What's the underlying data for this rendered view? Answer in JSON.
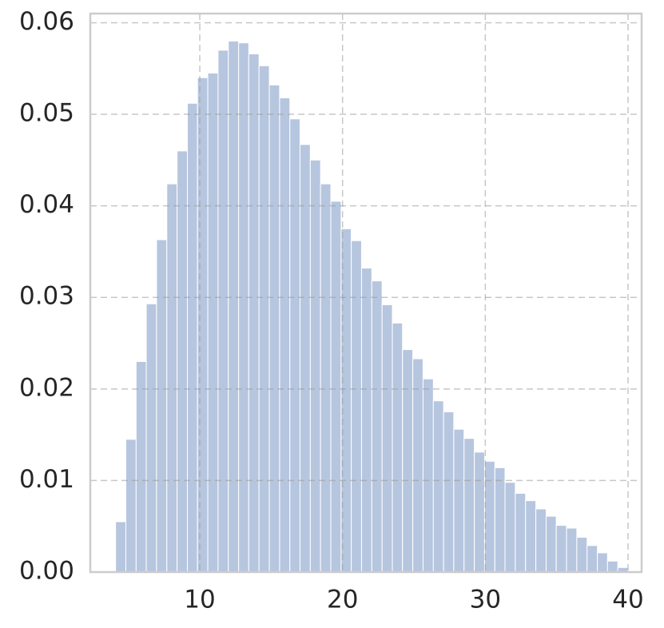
{
  "chart_data": {
    "type": "histogram",
    "bins": [
      4.1,
      4.82,
      5.54,
      6.25,
      6.97,
      7.69,
      8.41,
      9.13,
      9.84,
      10.56,
      11.28,
      12.0,
      12.72,
      13.43,
      14.15,
      14.87,
      15.59,
      16.31,
      17.02,
      17.74,
      18.46,
      19.18,
      19.9,
      20.61,
      21.33,
      22.05,
      22.77,
      23.49,
      24.2,
      24.92,
      25.64,
      26.36,
      27.08,
      27.79,
      28.51,
      29.23,
      29.95,
      30.67,
      31.38,
      32.1,
      32.82,
      33.54,
      34.26,
      34.97,
      35.69,
      36.41,
      37.13,
      37.85,
      38.56,
      39.28,
      40.0
    ],
    "values": [
      0.0055,
      0.0145,
      0.023,
      0.0293,
      0.0363,
      0.0424,
      0.046,
      0.0512,
      0.054,
      0.0545,
      0.057,
      0.058,
      0.0578,
      0.0566,
      0.0553,
      0.0532,
      0.0518,
      0.0495,
      0.0467,
      0.045,
      0.0424,
      0.0405,
      0.0375,
      0.0362,
      0.0332,
      0.0318,
      0.0292,
      0.0272,
      0.0243,
      0.0233,
      0.0211,
      0.0187,
      0.0175,
      0.0156,
      0.0146,
      0.0131,
      0.0121,
      0.0114,
      0.0098,
      0.0086,
      0.0078,
      0.0069,
      0.0061,
      0.0051,
      0.0048,
      0.0038,
      0.0029,
      0.0021,
      0.0012,
      0.0005
    ],
    "color": "#b7c6df",
    "xlim": [
      2.33,
      40.95
    ],
    "ylim": [
      0,
      0.061
    ],
    "xticks": [
      10,
      20,
      30,
      40
    ],
    "yticks": [
      {
        "value": 0,
        "label": "0.00"
      },
      {
        "value": 0.01,
        "label": "0.01"
      },
      {
        "value": 0.02,
        "label": "0.02"
      },
      {
        "value": 0.03,
        "label": "0.03"
      },
      {
        "value": 0.04,
        "label": "0.04"
      },
      {
        "value": 0.05,
        "label": "0.05"
      },
      {
        "value": 0.06,
        "label": "0.06"
      }
    ],
    "grid": true
  }
}
